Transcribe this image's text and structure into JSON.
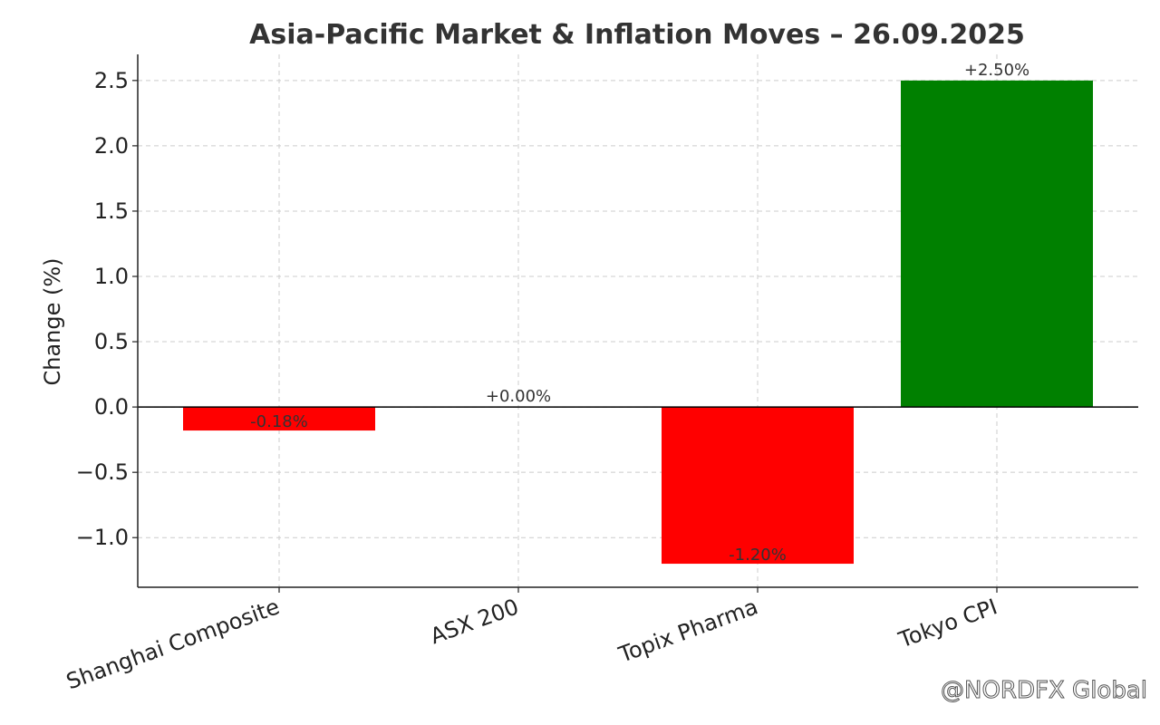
{
  "chart_data": {
    "type": "bar",
    "title": "Asia-Pacific Market & Inflation Moves – 26.09.2025",
    "xlabel": "",
    "ylabel": "Change (%)",
    "categories": [
      "Shanghai Composite",
      "ASX 200",
      "Topix Pharma",
      "Tokyo CPI"
    ],
    "values": [
      -0.18,
      0.0,
      -1.2,
      2.5
    ],
    "data_labels": [
      "-0.18%",
      "+0.00%",
      "-1.20%",
      "+2.50%"
    ],
    "colors": [
      "#ff0000",
      "#ff0000",
      "#ff0000",
      "#008000"
    ],
    "ylim": [
      -1.38,
      2.7
    ],
    "yticks": [
      -1.0,
      -0.5,
      0.0,
      0.5,
      1.0,
      1.5,
      2.0,
      2.5
    ],
    "ytick_labels": [
      "−1.0",
      "−0.5",
      "0.0",
      "0.5",
      "1.0",
      "1.5",
      "2.0",
      "2.5"
    ],
    "grid": true,
    "zero_line": true
  },
  "watermark": "@NORDFX Global"
}
